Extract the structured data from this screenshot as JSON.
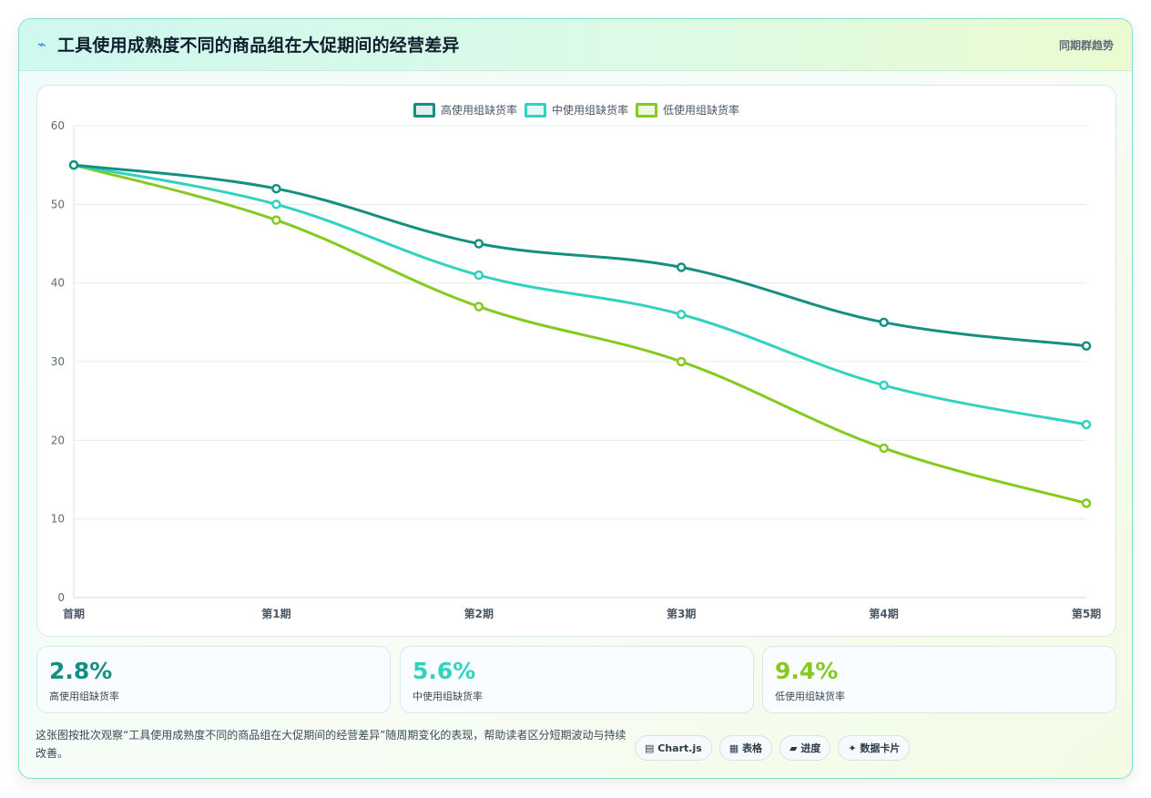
{
  "header": {
    "icon": "lightning-icon",
    "title": "工具使用成熟度不同的商品组在大促期间的经营差异",
    "tag": "同期群趋势"
  },
  "chart_data": {
    "type": "line",
    "categories": [
      "首期",
      "第1期",
      "第2期",
      "第3期",
      "第4期",
      "第5期"
    ],
    "ylim": [
      0,
      60
    ],
    "yticks": [
      0,
      10,
      20,
      30,
      40,
      50,
      60
    ],
    "grid": true,
    "legend_position": "top-center",
    "series": [
      {
        "name": "高使用组缺货率",
        "color": "#158f82",
        "values": [
          55,
          52,
          45,
          42,
          35,
          32
        ]
      },
      {
        "name": "中使用组缺货率",
        "color": "#33d1bf",
        "values": [
          55,
          50,
          41,
          36,
          27,
          22
        ]
      },
      {
        "name": "低使用组缺货率",
        "color": "#86c920",
        "values": [
          55,
          48,
          37,
          30,
          19,
          12
        ]
      }
    ]
  },
  "kpis": [
    {
      "value": "2.8%",
      "label": "高使用组缺货率",
      "color": "#158f82"
    },
    {
      "value": "5.6%",
      "label": "中使用组缺货率",
      "color": "#33d1bf"
    },
    {
      "value": "9.4%",
      "label": "低使用组缺货率",
      "color": "#86c920"
    }
  ],
  "description": "这张图按批次观察“工具使用成熟度不同的商品组在大促期间的经营差异”随周期变化的表现，帮助读者区分短期波动与持续改善。",
  "chips": [
    {
      "icon": "chart-icon",
      "glyph": "▤",
      "label": "Chart.js"
    },
    {
      "icon": "table-icon",
      "glyph": "▦",
      "label": "表格"
    },
    {
      "icon": "progress-icon",
      "glyph": "▰",
      "label": "进度"
    },
    {
      "icon": "sparkle-icon",
      "glyph": "✦",
      "label": "数据卡片"
    }
  ]
}
